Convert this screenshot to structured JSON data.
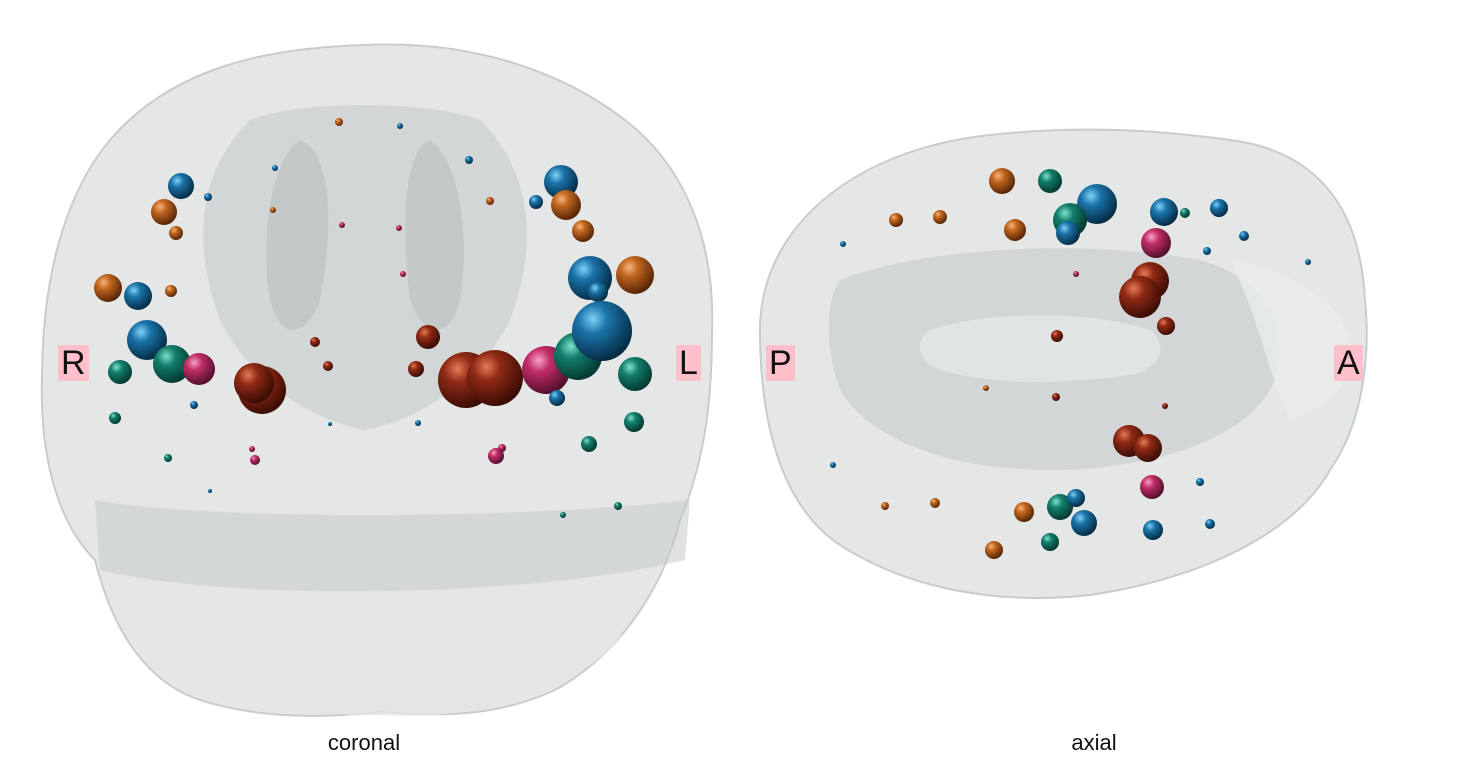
{
  "colors": {
    "blue": "#0f5f8e",
    "orange": "#b65a1c",
    "teal": "#0f7a6a",
    "magenta": "#b8285f",
    "red": "#8a2614",
    "brain_fill": "#d9dcdc",
    "label_bg": "#ffc0cb"
  },
  "views": {
    "coronal": {
      "caption": "coronal",
      "left_label": "R",
      "right_label": "L"
    },
    "axial": {
      "caption": "axial",
      "left_label": "P",
      "right_label": "A"
    }
  }
}
